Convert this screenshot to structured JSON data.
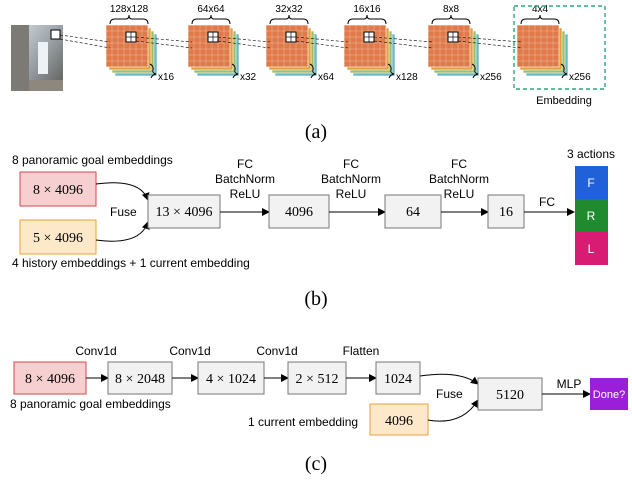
{
  "panel_a": {
    "caption": "(a)",
    "stages": [
      {
        "size": "128x128",
        "count": "x16"
      },
      {
        "size": "64x64",
        "count": "x32"
      },
      {
        "size": "32x32",
        "count": "x64"
      },
      {
        "size": "16x16",
        "count": "x128"
      },
      {
        "size": "8x8",
        "count": "x256"
      },
      {
        "size": "4x4",
        "count": "x256"
      }
    ],
    "embedding_label": "Embedding",
    "colors": {
      "dash_box": "#2aa87a"
    }
  },
  "panel_b": {
    "caption": "(b)",
    "goal_caption": "8 panoramic goal embeddings",
    "goal_box": "8 × 4096",
    "history_box": "5 × 4096",
    "history_caption": "4 history embeddings + 1 current embedding",
    "fuse": "Fuse",
    "fused_box": "13 × 4096",
    "layer_label": [
      "FC",
      "BatchNorm",
      "ReLU"
    ],
    "hidden": [
      "4096",
      "64",
      "16"
    ],
    "fc": "FC",
    "actions_title": "3 actions",
    "actions": [
      "F",
      "R",
      "L"
    ],
    "colors": {
      "goal": "#f6cfd0",
      "goal_border": "#d04a4a",
      "history": "#fde9c9",
      "history_border": "#e8a33a",
      "box": "#f2f2f2",
      "action_f": "#2060d8",
      "action_r": "#1f8a2e",
      "action_l": "#d81c73"
    }
  },
  "panel_c": {
    "caption": "(c)",
    "conv": "Conv1d",
    "flatten": "Flatten",
    "goal_box": "8 × 4096",
    "goal_caption": "8 panoramic goal embeddings",
    "boxes": [
      "8 × 2048",
      "4 × 1024",
      "2 × 512",
      "1024"
    ],
    "current_caption": "1 current embedding",
    "current_box": "4096",
    "fuse": "Fuse",
    "fused_box": "5120",
    "mlp": "MLP",
    "done": "Done?",
    "colors": {
      "done": "#9b1fd8"
    }
  }
}
